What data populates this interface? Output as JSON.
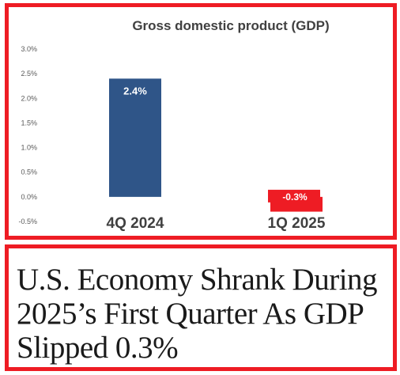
{
  "chart_data": {
    "type": "bar",
    "title": "Gross domestic product (GDP)",
    "categories": [
      "4Q 2024",
      "1Q 2025"
    ],
    "values": [
      2.4,
      -0.3
    ],
    "data_labels": [
      "2.4%",
      "-0.3%"
    ],
    "bar_colors": [
      "#2f5588",
      "#ee1c24"
    ],
    "yticks": [
      "3.0%",
      "2.5%",
      "2.0%",
      "1.5%",
      "1.0%",
      "0.5%",
      "0.0%",
      "-0.5%"
    ],
    "ytick_values": [
      3.0,
      2.5,
      2.0,
      1.5,
      1.0,
      0.5,
      0.0,
      -0.5
    ],
    "ylim": [
      -0.5,
      3.0
    ],
    "grid": false,
    "legend": "none"
  },
  "headline": {
    "text": "U.S. Economy Shrank During 2025’s First Quarter As GDP Slipped 0.3%"
  },
  "colors": {
    "frame": "#ee1c24",
    "axis_text": "#595959"
  }
}
